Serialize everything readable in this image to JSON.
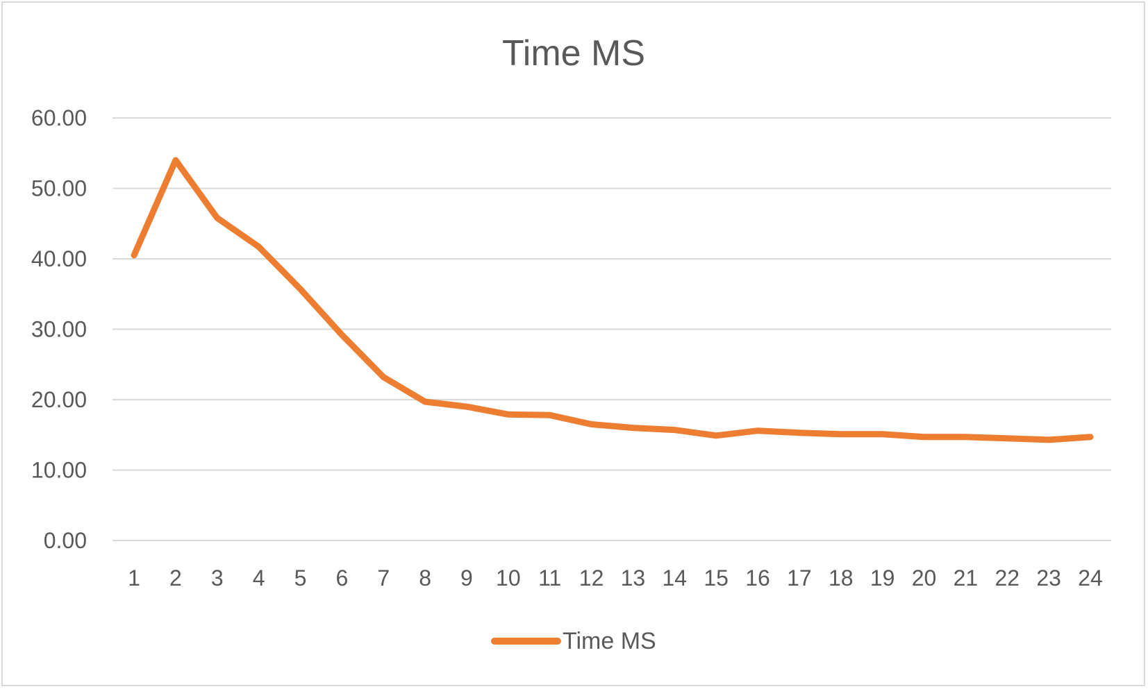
{
  "chart_data": {
    "type": "line",
    "title": "Time MS",
    "xlabel": "",
    "ylabel": "",
    "categories": [
      "1",
      "2",
      "3",
      "4",
      "5",
      "6",
      "7",
      "8",
      "9",
      "10",
      "11",
      "12",
      "13",
      "14",
      "15",
      "16",
      "17",
      "18",
      "19",
      "20",
      "21",
      "22",
      "23",
      "24"
    ],
    "series": [
      {
        "name": "Time MS",
        "color": "#ed7d31",
        "values": [
          40.5,
          54.0,
          45.8,
          41.7,
          35.7,
          29.2,
          23.2,
          19.7,
          19.0,
          17.9,
          17.8,
          16.5,
          16.0,
          15.7,
          14.9,
          15.6,
          15.3,
          15.1,
          15.1,
          14.7,
          14.7,
          14.5,
          14.3,
          14.7
        ]
      }
    ],
    "ylim": [
      0,
      60
    ],
    "yticks": [
      "0.00",
      "10.00",
      "20.00",
      "30.00",
      "40.00",
      "50.00",
      "60.00"
    ],
    "ytick_values": [
      0,
      10,
      20,
      30,
      40,
      50,
      60
    ],
    "grid": true,
    "legend_position": "bottom"
  }
}
